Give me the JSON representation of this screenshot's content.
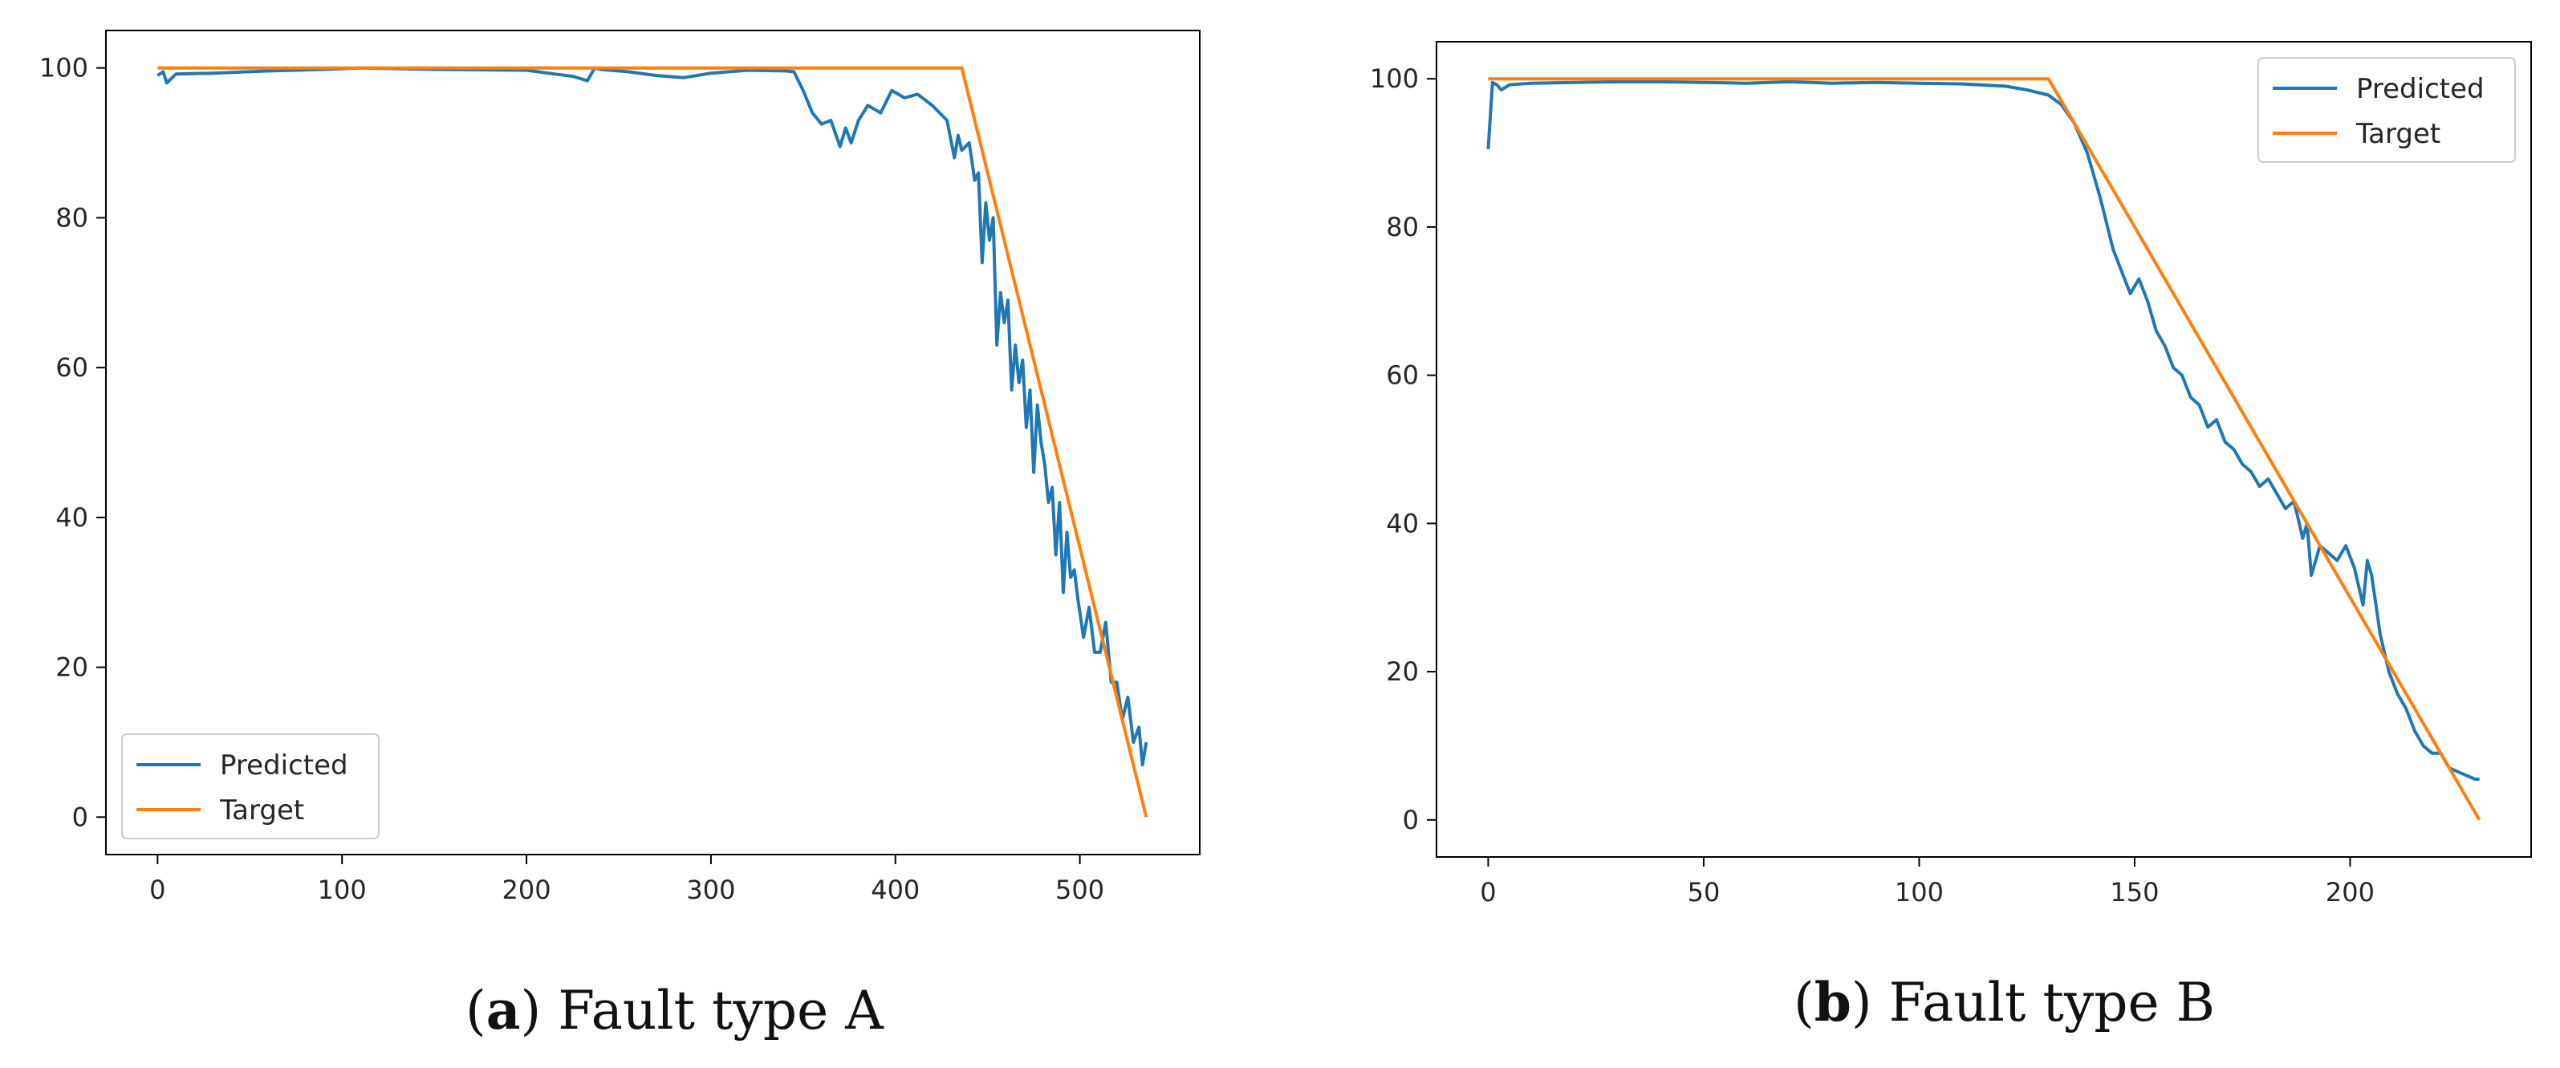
{
  "colors": {
    "predicted": "#1f77b4",
    "target": "#ff7f0e",
    "axis": "#000000",
    "text": "#262626"
  },
  "chart_data": [
    {
      "type": "line",
      "caption_label": "a",
      "caption_text": "Fault type A",
      "xlim": [
        -28,
        565
      ],
      "ylim": [
        -5,
        105
      ],
      "xticks": [
        0,
        100,
        200,
        300,
        400,
        500
      ],
      "yticks": [
        0,
        20,
        40,
        60,
        80,
        100
      ],
      "legend_position": "lower-left",
      "series": [
        {
          "name": "Predicted",
          "x": [
            0,
            3,
            5,
            10,
            30,
            60,
            90,
            110,
            150,
            200,
            215,
            225,
            233,
            237,
            240,
            255,
            270,
            285,
            300,
            320,
            340,
            345,
            350,
            355,
            360,
            365,
            370,
            373,
            376,
            380,
            385,
            392,
            398,
            405,
            412,
            420,
            428,
            432,
            434,
            436,
            440,
            443,
            445,
            447,
            449,
            451,
            453,
            455,
            457,
            459,
            461,
            463,
            465,
            467,
            469,
            471,
            473,
            475,
            477,
            479,
            481,
            483,
            485,
            487,
            489,
            491,
            493,
            495,
            497,
            499,
            502,
            505,
            508,
            511,
            514,
            517,
            520,
            523,
            526,
            529,
            532,
            534,
            536
          ],
          "y": [
            99,
            99.5,
            98,
            99.2,
            99.3,
            99.6,
            99.8,
            100,
            99.8,
            99.7,
            99.2,
            98.9,
            98.3,
            100,
            99.8,
            99.5,
            99,
            98.7,
            99.3,
            99.7,
            99.6,
            99.5,
            97,
            94,
            92.5,
            93,
            89.5,
            92,
            90,
            93,
            95,
            94,
            97,
            96,
            96.5,
            95,
            93,
            88,
            91,
            89,
            90,
            85,
            86,
            74,
            82,
            77,
            80,
            63,
            70,
            66,
            69,
            57,
            63,
            58,
            61,
            52,
            57,
            46,
            55,
            50,
            47,
            42,
            44,
            35,
            42,
            30,
            38,
            32,
            33,
            29,
            24,
            28,
            22,
            22,
            26,
            18,
            18,
            13,
            16,
            10,
            12,
            7,
            10
          ]
        },
        {
          "name": "Target",
          "x": [
            0,
            436,
            536
          ],
          "y": [
            100,
            100,
            0
          ]
        }
      ]
    },
    {
      "type": "line",
      "caption_label": "b",
      "caption_text": "Fault type B",
      "xlim": [
        -12,
        242
      ],
      "ylim": [
        -5,
        105
      ],
      "xticks": [
        0,
        50,
        100,
        150,
        200
      ],
      "yticks": [
        0,
        20,
        40,
        60,
        80,
        100
      ],
      "legend_position": "top-right",
      "series": [
        {
          "name": "Predicted",
          "x": [
            0,
            1,
            2,
            3,
            5,
            10,
            20,
            30,
            40,
            50,
            60,
            70,
            80,
            90,
            100,
            110,
            120,
            125,
            130,
            133,
            136,
            139,
            142,
            145,
            147,
            149,
            151,
            153,
            155,
            157,
            159,
            161,
            163,
            165,
            167,
            169,
            171,
            173,
            175,
            177,
            179,
            181,
            183,
            185,
            187,
            189,
            190,
            191,
            193,
            195,
            197,
            199,
            201,
            203,
            204,
            205,
            207,
            209,
            211,
            213,
            215,
            217,
            219,
            221,
            223,
            225,
            227,
            229,
            230
          ],
          "y": [
            90.5,
            99.5,
            99.2,
            98.5,
            99.2,
            99.4,
            99.5,
            99.6,
            99.6,
            99.5,
            99.4,
            99.6,
            99.4,
            99.5,
            99.4,
            99.3,
            99,
            98.5,
            97.8,
            96.5,
            94,
            90,
            84,
            77,
            74,
            71,
            73,
            70,
            66,
            64,
            61,
            60,
            57,
            56,
            53,
            54,
            51,
            50,
            48,
            47,
            45,
            46,
            44,
            42,
            43,
            38,
            40,
            33,
            37,
            36,
            35,
            37,
            34,
            29,
            35,
            33,
            25,
            20,
            17,
            15,
            12,
            10,
            9,
            9,
            7,
            6.5,
            6,
            5.5,
            5.5
          ]
        },
        {
          "name": "Target",
          "x": [
            0,
            130,
            230
          ],
          "y": [
            100,
            100,
            0
          ]
        }
      ]
    }
  ]
}
